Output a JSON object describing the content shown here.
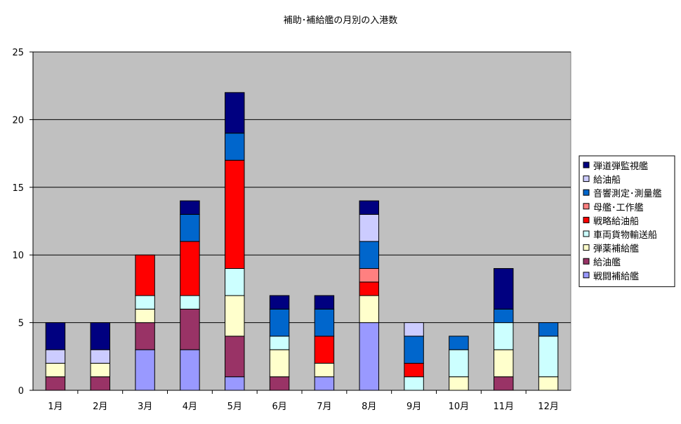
{
  "chart_data": {
    "type": "bar",
    "stacked": true,
    "title": "補助･補給艦の月別の入港数",
    "categories": [
      "1月",
      "2月",
      "3月",
      "4月",
      "5月",
      "6月",
      "7月",
      "8月",
      "9月",
      "10月",
      "11月",
      "12月"
    ],
    "ylim": [
      0,
      25
    ],
    "yticks": [
      0,
      5,
      10,
      15,
      20,
      25
    ],
    "grid": true,
    "legend_position": "right",
    "plot_background": "#c0c0c0",
    "series": [
      {
        "name": "戦闘補給艦",
        "color": "#9999ff",
        "values": [
          0,
          0,
          3,
          3,
          1,
          0,
          1,
          5,
          0,
          0,
          0,
          0
        ]
      },
      {
        "name": "給油艦",
        "color": "#993366",
        "values": [
          1,
          1,
          2,
          3,
          3,
          1,
          0,
          0,
          0,
          0,
          1,
          0
        ]
      },
      {
        "name": "弾薬補給艦",
        "color": "#ffffcc",
        "values": [
          1,
          1,
          1,
          0,
          3,
          2,
          1,
          2,
          0,
          1,
          2,
          1
        ]
      },
      {
        "name": "車両貨物輸送船",
        "color": "#ccffff",
        "values": [
          0,
          0,
          1,
          1,
          2,
          1,
          0,
          0,
          1,
          2,
          2,
          3
        ]
      },
      {
        "name": "戦略給油船",
        "color": "#ff0000",
        "values": [
          0,
          0,
          3,
          4,
          8,
          0,
          2,
          1,
          1,
          0,
          0,
          0
        ]
      },
      {
        "name": "母艦･工作艦",
        "color": "#ff8080",
        "values": [
          0,
          0,
          0,
          0,
          0,
          0,
          0,
          1,
          0,
          0,
          0,
          0
        ]
      },
      {
        "name": "音響測定･測量艦",
        "color": "#0066cc",
        "values": [
          0,
          0,
          0,
          2,
          2,
          2,
          2,
          2,
          2,
          1,
          1,
          1
        ]
      },
      {
        "name": "給油船",
        "color": "#ccccff",
        "values": [
          1,
          1,
          0,
          0,
          0,
          0,
          0,
          2,
          1,
          0,
          0,
          0
        ]
      },
      {
        "name": "弾道弾監視艦",
        "color": "#000080",
        "values": [
          2,
          2,
          0,
          1,
          3,
          1,
          1,
          1,
          0,
          0,
          3,
          0
        ]
      }
    ],
    "legend_order": [
      "弾道弾監視艦",
      "給油船",
      "音響測定･測量艦",
      "母艦･工作艦",
      "戦略給油船",
      "車両貨物輸送船",
      "弾薬補給艦",
      "給油艦",
      "戦闘補給艦"
    ]
  }
}
